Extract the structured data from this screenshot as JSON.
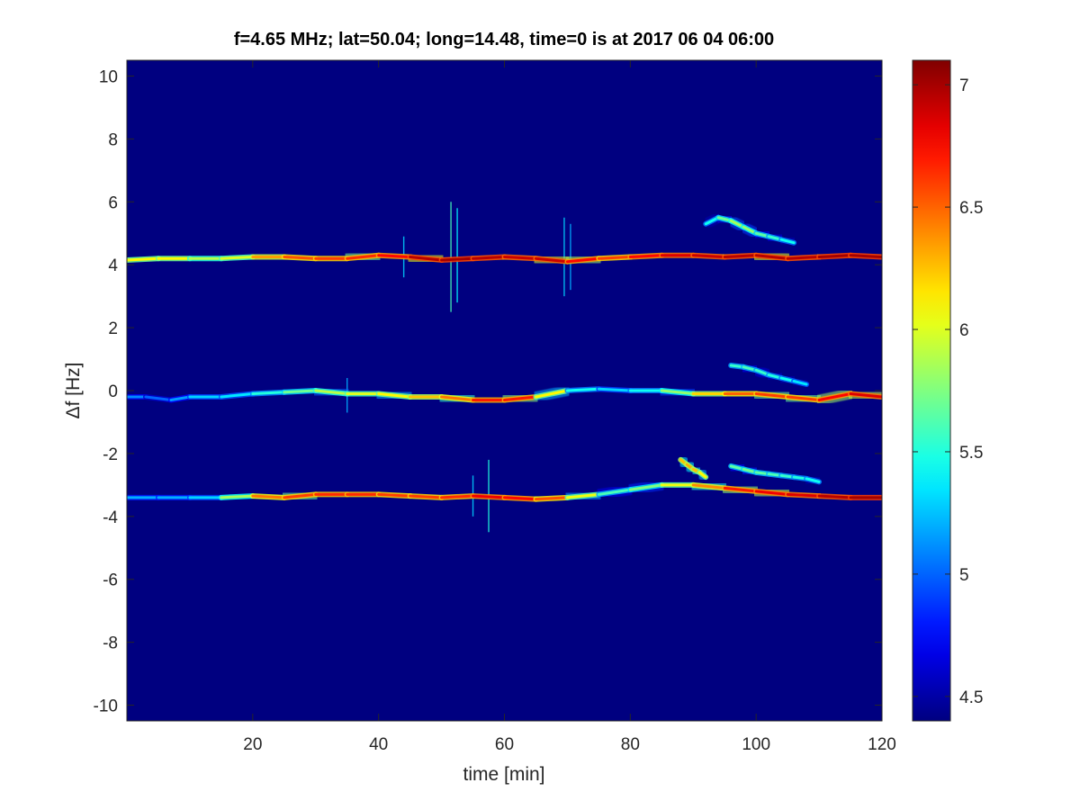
{
  "chart_data": {
    "type": "heatmap",
    "title": "f=4.65 MHz;  lat=50.04; long=14.48, time=0 is at 2017 06 04 06:00",
    "xlabel": "time [min]",
    "ylabel": "Δf [Hz]",
    "xlim": [
      0,
      120
    ],
    "ylim": [
      -10.5,
      10.5
    ],
    "xticks": [
      20,
      40,
      60,
      80,
      100,
      120
    ],
    "yticks": [
      10,
      8,
      6,
      4,
      2,
      0,
      -2,
      -4,
      -6,
      -8,
      -10
    ],
    "colorbar": {
      "colormap": "jet",
      "clim": [
        4.4,
        7.1
      ],
      "ticks": [
        7,
        6.5,
        6,
        5.5,
        5,
        4.5
      ]
    },
    "background_value": 4.4,
    "colors": {
      "background_dark_blue": "#00008f",
      "peak_dark_red": "#800000"
    },
    "traces": [
      {
        "label": "+4 Hz trace",
        "x": [
          0,
          5,
          10,
          15,
          20,
          25,
          30,
          35,
          40,
          45,
          50,
          55,
          60,
          65,
          70,
          75,
          80,
          85,
          90,
          95,
          100,
          105,
          110,
          115,
          120
        ],
        "y": [
          4.15,
          4.2,
          4.2,
          4.2,
          4.25,
          4.25,
          4.2,
          4.2,
          4.3,
          4.25,
          4.15,
          4.2,
          4.25,
          4.2,
          4.1,
          4.2,
          4.25,
          4.3,
          4.3,
          4.25,
          4.3,
          4.2,
          4.25,
          4.3,
          4.25
        ],
        "intensity": [
          6.0,
          6.2,
          6.0,
          5.8,
          6.2,
          6.5,
          6.6,
          6.6,
          6.7,
          6.8,
          7.1,
          6.9,
          7.0,
          6.8,
          7.0,
          6.5,
          6.7,
          6.8,
          6.9,
          6.9,
          7.0,
          6.9,
          7.0,
          7.0,
          7.0
        ]
      },
      {
        "label": "0 Hz trace",
        "x": [
          0,
          3,
          7,
          10,
          15,
          20,
          25,
          30,
          35,
          40,
          45,
          50,
          55,
          60,
          65,
          70,
          75,
          80,
          85,
          90,
          95,
          100,
          105,
          110,
          115,
          120
        ],
        "y": [
          -0.2,
          -0.2,
          -0.3,
          -0.2,
          -0.2,
          -0.1,
          -0.05,
          0.0,
          -0.1,
          -0.1,
          -0.2,
          -0.2,
          -0.3,
          -0.3,
          -0.2,
          0.0,
          0.05,
          0.0,
          0.0,
          -0.1,
          -0.1,
          -0.1,
          -0.2,
          -0.3,
          -0.1,
          -0.2
        ],
        "intensity": [
          5.2,
          5.0,
          5.0,
          5.3,
          5.3,
          5.4,
          5.6,
          5.8,
          6.0,
          6.0,
          6.2,
          6.3,
          6.6,
          6.8,
          6.6,
          5.6,
          5.3,
          5.3,
          5.6,
          6.0,
          6.4,
          6.6,
          6.6,
          6.6,
          6.9,
          6.8
        ]
      },
      {
        "label": "-3.4 Hz trace",
        "x": [
          0,
          5,
          10,
          15,
          20,
          25,
          30,
          35,
          40,
          45,
          50,
          55,
          60,
          65,
          70,
          75,
          80,
          85,
          90,
          95,
          100,
          105,
          110,
          115,
          120
        ],
        "y": [
          -3.4,
          -3.4,
          -3.4,
          -3.4,
          -3.35,
          -3.4,
          -3.3,
          -3.3,
          -3.3,
          -3.35,
          -3.4,
          -3.35,
          -3.4,
          -3.45,
          -3.4,
          -3.3,
          -3.15,
          -3.0,
          -3.0,
          -3.1,
          -3.2,
          -3.3,
          -3.35,
          -3.4,
          -3.4
        ],
        "intensity": [
          5.2,
          5.2,
          5.2,
          5.4,
          6.3,
          6.6,
          6.6,
          6.7,
          6.6,
          6.6,
          6.6,
          6.7,
          6.9,
          6.6,
          6.5,
          5.6,
          5.6,
          5.9,
          6.2,
          6.6,
          6.8,
          6.8,
          6.9,
          7.0,
          7.0
        ]
      },
      {
        "label": "diagonal spur near 88-92 min",
        "x": [
          88,
          89,
          90,
          91,
          92
        ],
        "y": [
          -2.2,
          -2.35,
          -2.5,
          -2.6,
          -2.75
        ],
        "intensity": [
          6.2,
          6.3,
          6.3,
          6.2,
          6.0
        ]
      },
      {
        "label": "upper branch 92-105 min",
        "x": [
          92,
          94,
          96,
          98,
          100,
          102,
          104,
          106
        ],
        "y": [
          5.3,
          5.5,
          5.4,
          5.2,
          5.0,
          4.9,
          4.8,
          4.7
        ],
        "intensity": [
          5.3,
          5.6,
          5.8,
          5.9,
          5.7,
          5.6,
          5.5,
          5.4
        ]
      },
      {
        "label": "upper branch 97-108 min near 0.7 Hz",
        "x": [
          96,
          98,
          100,
          102,
          104,
          106,
          108
        ],
        "y": [
          0.8,
          0.75,
          0.65,
          0.5,
          0.4,
          0.3,
          0.2
        ],
        "intensity": [
          5.5,
          5.6,
          5.6,
          5.5,
          5.5,
          5.4,
          5.3
        ]
      },
      {
        "label": "upper branch 97-110 min near -2.5 Hz",
        "x": [
          96,
          98,
          100,
          102,
          104,
          106,
          108,
          110
        ],
        "y": [
          -2.4,
          -2.5,
          -2.6,
          -2.65,
          -2.7,
          -2.75,
          -2.8,
          -2.9
        ],
        "intensity": [
          5.6,
          5.7,
          5.7,
          5.6,
          5.6,
          5.5,
          5.5,
          5.4
        ]
      }
    ],
    "vertical_spikes": [
      {
        "x": 51.5,
        "ymin": 2.5,
        "ymax": 6.0,
        "intensity": 5.6
      },
      {
        "x": 52.5,
        "ymin": 2.8,
        "ymax": 5.8,
        "intensity": 5.4
      },
      {
        "x": 57.5,
        "ymin": -4.5,
        "ymax": -2.2,
        "intensity": 5.5
      },
      {
        "x": 69.5,
        "ymin": 3.0,
        "ymax": 5.5,
        "intensity": 5.3
      },
      {
        "x": 70.5,
        "ymin": 3.2,
        "ymax": 5.3,
        "intensity": 5.2
      },
      {
        "x": 44.0,
        "ymin": 3.6,
        "ymax": 4.9,
        "intensity": 5.3
      },
      {
        "x": 35.0,
        "ymin": -0.7,
        "ymax": 0.4,
        "intensity": 5.2
      },
      {
        "x": 55.0,
        "ymin": -4.0,
        "ymax": -2.7,
        "intensity": 5.3
      }
    ]
  }
}
